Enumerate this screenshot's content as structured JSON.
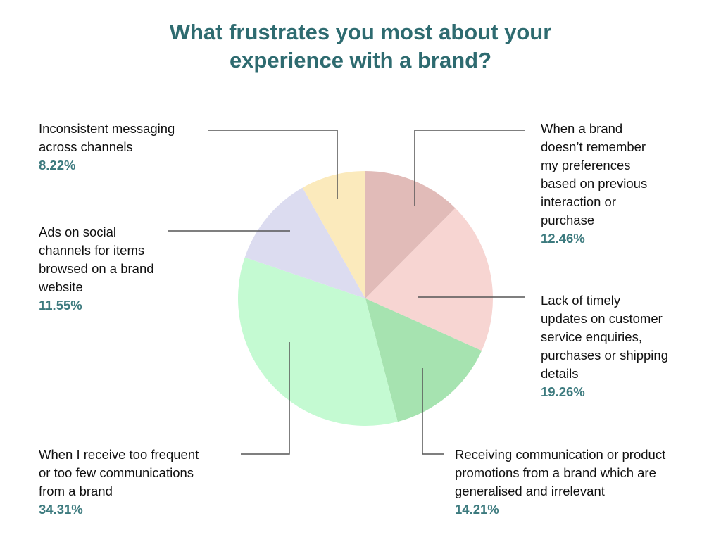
{
  "title": {
    "line1": "What frustrates you most about your",
    "line2": "experience with a brand?"
  },
  "chart_data": {
    "type": "pie",
    "title": "What frustrates you most about your experience with a brand?",
    "start_angle_deg": 0,
    "direction": "clockwise",
    "center": [
      519,
      424
    ],
    "radius": 181,
    "slices": [
      {
        "label": "When a brand doesn't remember my preferences based on previous interaction or purchase",
        "value": 12.46,
        "color": "#e1bbb8"
      },
      {
        "label": "Lack of timely updates on customer service enquiries, purchases or shipping details",
        "value": 19.26,
        "color": "#f7d5d2"
      },
      {
        "label": "Receiving communication or product promotions from a brand which are generalised and irrelevant",
        "value": 14.21,
        "color": "#a6e3b0"
      },
      {
        "label": "When I receive too frequent or too few communications from a brand",
        "value": 34.31,
        "color": "#c4fad2"
      },
      {
        "label": "Ads on social channels for items browsed on a brand website",
        "value": 11.55,
        "color": "#dcdcf0"
      },
      {
        "label": "Inconsistent messaging across channels",
        "value": 8.22,
        "color": "#fbeabc"
      }
    ]
  },
  "labels": {
    "inconsistent": {
      "lines": [
        "Inconsistent messaging",
        "across channels"
      ],
      "pct": "8.22%"
    },
    "ads": {
      "lines": [
        "Ads on social",
        "channels for items",
        "browsed on a brand",
        "website"
      ],
      "pct": "11.55%"
    },
    "frequency": {
      "lines": [
        "When I receive too frequent",
        "or too few communications",
        "from a brand"
      ],
      "pct": "34.31%"
    },
    "remember": {
      "lines": [
        "When a brand",
        "doesn’t remember",
        "my preferences",
        "based on previous",
        "interaction or",
        "purchase"
      ],
      "pct": "12.46%"
    },
    "updates": {
      "lines": [
        "Lack of timely",
        "updates on customer",
        "service enquiries,",
        "purchases or shipping",
        "details"
      ],
      "pct": "19.26%"
    },
    "generalised": {
      "lines": [
        "Receiving communication or product",
        "promotions from a brand which are",
        "generalised and irrelevant"
      ],
      "pct": "14.21%"
    }
  },
  "colors": {
    "title": "#2e6b70",
    "percent": "#3c7a7e",
    "leader_line": "#555555"
  }
}
